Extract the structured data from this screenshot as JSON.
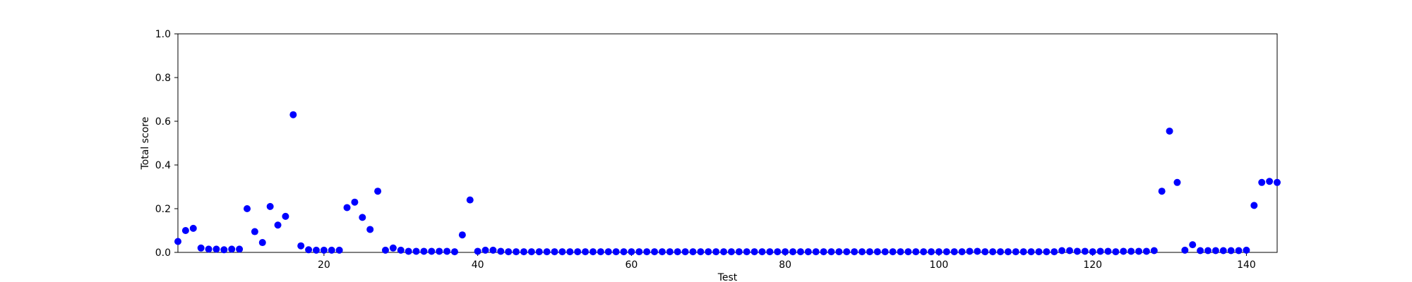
{
  "chart_data": {
    "type": "scatter",
    "title": "",
    "xlabel": "Test",
    "ylabel": "Total score",
    "xlim": [
      1,
      144
    ],
    "ylim": [
      0.0,
      1.0
    ],
    "x_ticks": [
      20,
      40,
      60,
      80,
      100,
      120,
      140
    ],
    "y_ticks": [
      0.0,
      0.2,
      0.4,
      0.6,
      0.8,
      1.0
    ],
    "grid": false,
    "marker_color": "#0000ff",
    "series": [
      {
        "name": "Total score",
        "x": [
          1,
          2,
          3,
          4,
          5,
          6,
          7,
          8,
          9,
          10,
          11,
          12,
          13,
          14,
          15,
          16,
          17,
          18,
          19,
          20,
          21,
          22,
          23,
          24,
          25,
          26,
          27,
          28,
          29,
          30,
          31,
          32,
          33,
          34,
          35,
          36,
          37,
          38,
          39,
          40,
          41,
          42,
          43,
          44,
          45,
          46,
          47,
          48,
          49,
          50,
          51,
          52,
          53,
          54,
          55,
          56,
          57,
          58,
          59,
          60,
          61,
          62,
          63,
          64,
          65,
          66,
          67,
          68,
          69,
          70,
          71,
          72,
          73,
          74,
          75,
          76,
          77,
          78,
          79,
          80,
          81,
          82,
          83,
          84,
          85,
          86,
          87,
          88,
          89,
          90,
          91,
          92,
          93,
          94,
          95,
          96,
          97,
          98,
          99,
          100,
          101,
          102,
          103,
          104,
          105,
          106,
          107,
          108,
          109,
          110,
          111,
          112,
          113,
          114,
          115,
          116,
          117,
          118,
          119,
          120,
          121,
          122,
          123,
          124,
          125,
          126,
          127,
          128,
          129,
          130,
          131,
          132,
          133,
          134,
          135,
          136,
          137,
          138,
          139,
          140,
          141,
          142,
          143,
          144
        ],
        "values": [
          0.05,
          0.1,
          0.11,
          0.02,
          0.015,
          0.015,
          0.012,
          0.015,
          0.015,
          0.2,
          0.095,
          0.045,
          0.21,
          0.125,
          0.165,
          0.63,
          0.03,
          0.012,
          0.01,
          0.01,
          0.01,
          0.01,
          0.205,
          0.23,
          0.16,
          0.105,
          0.28,
          0.01,
          0.02,
          0.01,
          0.005,
          0.005,
          0.005,
          0.005,
          0.005,
          0.005,
          0.003,
          0.08,
          0.24,
          0.005,
          0.01,
          0.01,
          0.005,
          0.003,
          0.003,
          0.003,
          0.003,
          0.003,
          0.003,
          0.003,
          0.003,
          0.003,
          0.003,
          0.003,
          0.003,
          0.003,
          0.003,
          0.003,
          0.003,
          0.003,
          0.003,
          0.003,
          0.003,
          0.003,
          0.003,
          0.003,
          0.003,
          0.003,
          0.003,
          0.003,
          0.003,
          0.003,
          0.003,
          0.003,
          0.003,
          0.003,
          0.003,
          0.003,
          0.003,
          0.003,
          0.003,
          0.003,
          0.003,
          0.003,
          0.003,
          0.003,
          0.003,
          0.003,
          0.003,
          0.003,
          0.003,
          0.003,
          0.003,
          0.003,
          0.003,
          0.003,
          0.003,
          0.003,
          0.003,
          0.003,
          0.003,
          0.003,
          0.003,
          0.005,
          0.005,
          0.003,
          0.003,
          0.003,
          0.003,
          0.003,
          0.003,
          0.003,
          0.003,
          0.003,
          0.003,
          0.008,
          0.008,
          0.005,
          0.005,
          0.003,
          0.005,
          0.005,
          0.003,
          0.005,
          0.005,
          0.005,
          0.005,
          0.008,
          0.28,
          0.555,
          0.32,
          0.01,
          0.035,
          0.008,
          0.008,
          0.008,
          0.008,
          0.008,
          0.008,
          0.01,
          0.215,
          0.32,
          0.325,
          0.32
        ]
      }
    ]
  }
}
